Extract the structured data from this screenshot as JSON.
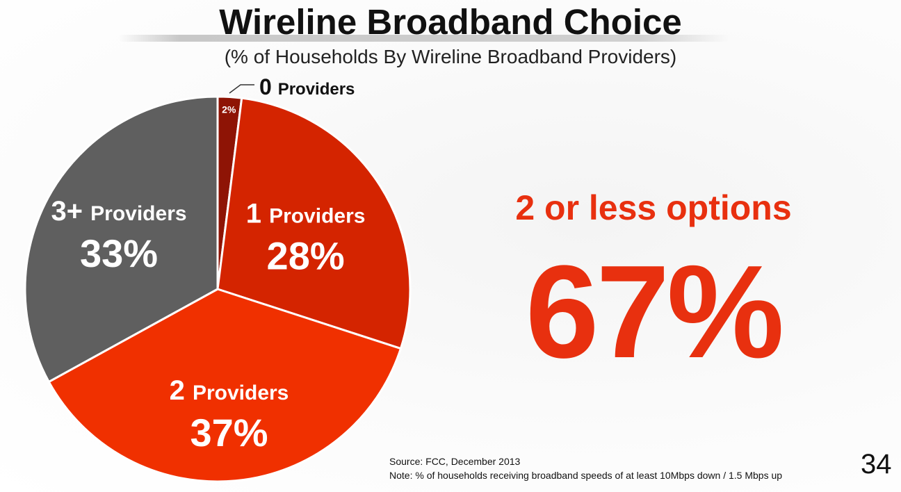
{
  "slide": {
    "title": "Wireline Broadband Choice",
    "subtitle": "(% of Households By Wireline Broadband Providers)",
    "highlight_label": "2 or less options",
    "highlight_value": "67%",
    "source": "Source: FCC, December 2013",
    "note": "Note: % of households receiving broadband speeds of at least 10Mbps down / 1.5 Mbps up",
    "page_number": "34"
  },
  "chart_data": {
    "type": "pie",
    "slices": [
      {
        "num": "0",
        "word": "Providers",
        "value": 2,
        "value_label": "2%",
        "color": "#8e1405"
      },
      {
        "num": "1",
        "word": "Providers",
        "value": 28,
        "value_label": "28%",
        "color": "#d42400"
      },
      {
        "num": "2",
        "word": "Providers",
        "value": 37,
        "value_label": "37%",
        "color": "#f03000"
      },
      {
        "num": "3+",
        "word": "Providers",
        "value": 33,
        "value_label": "33%",
        "color": "#5f5f5f"
      }
    ]
  }
}
